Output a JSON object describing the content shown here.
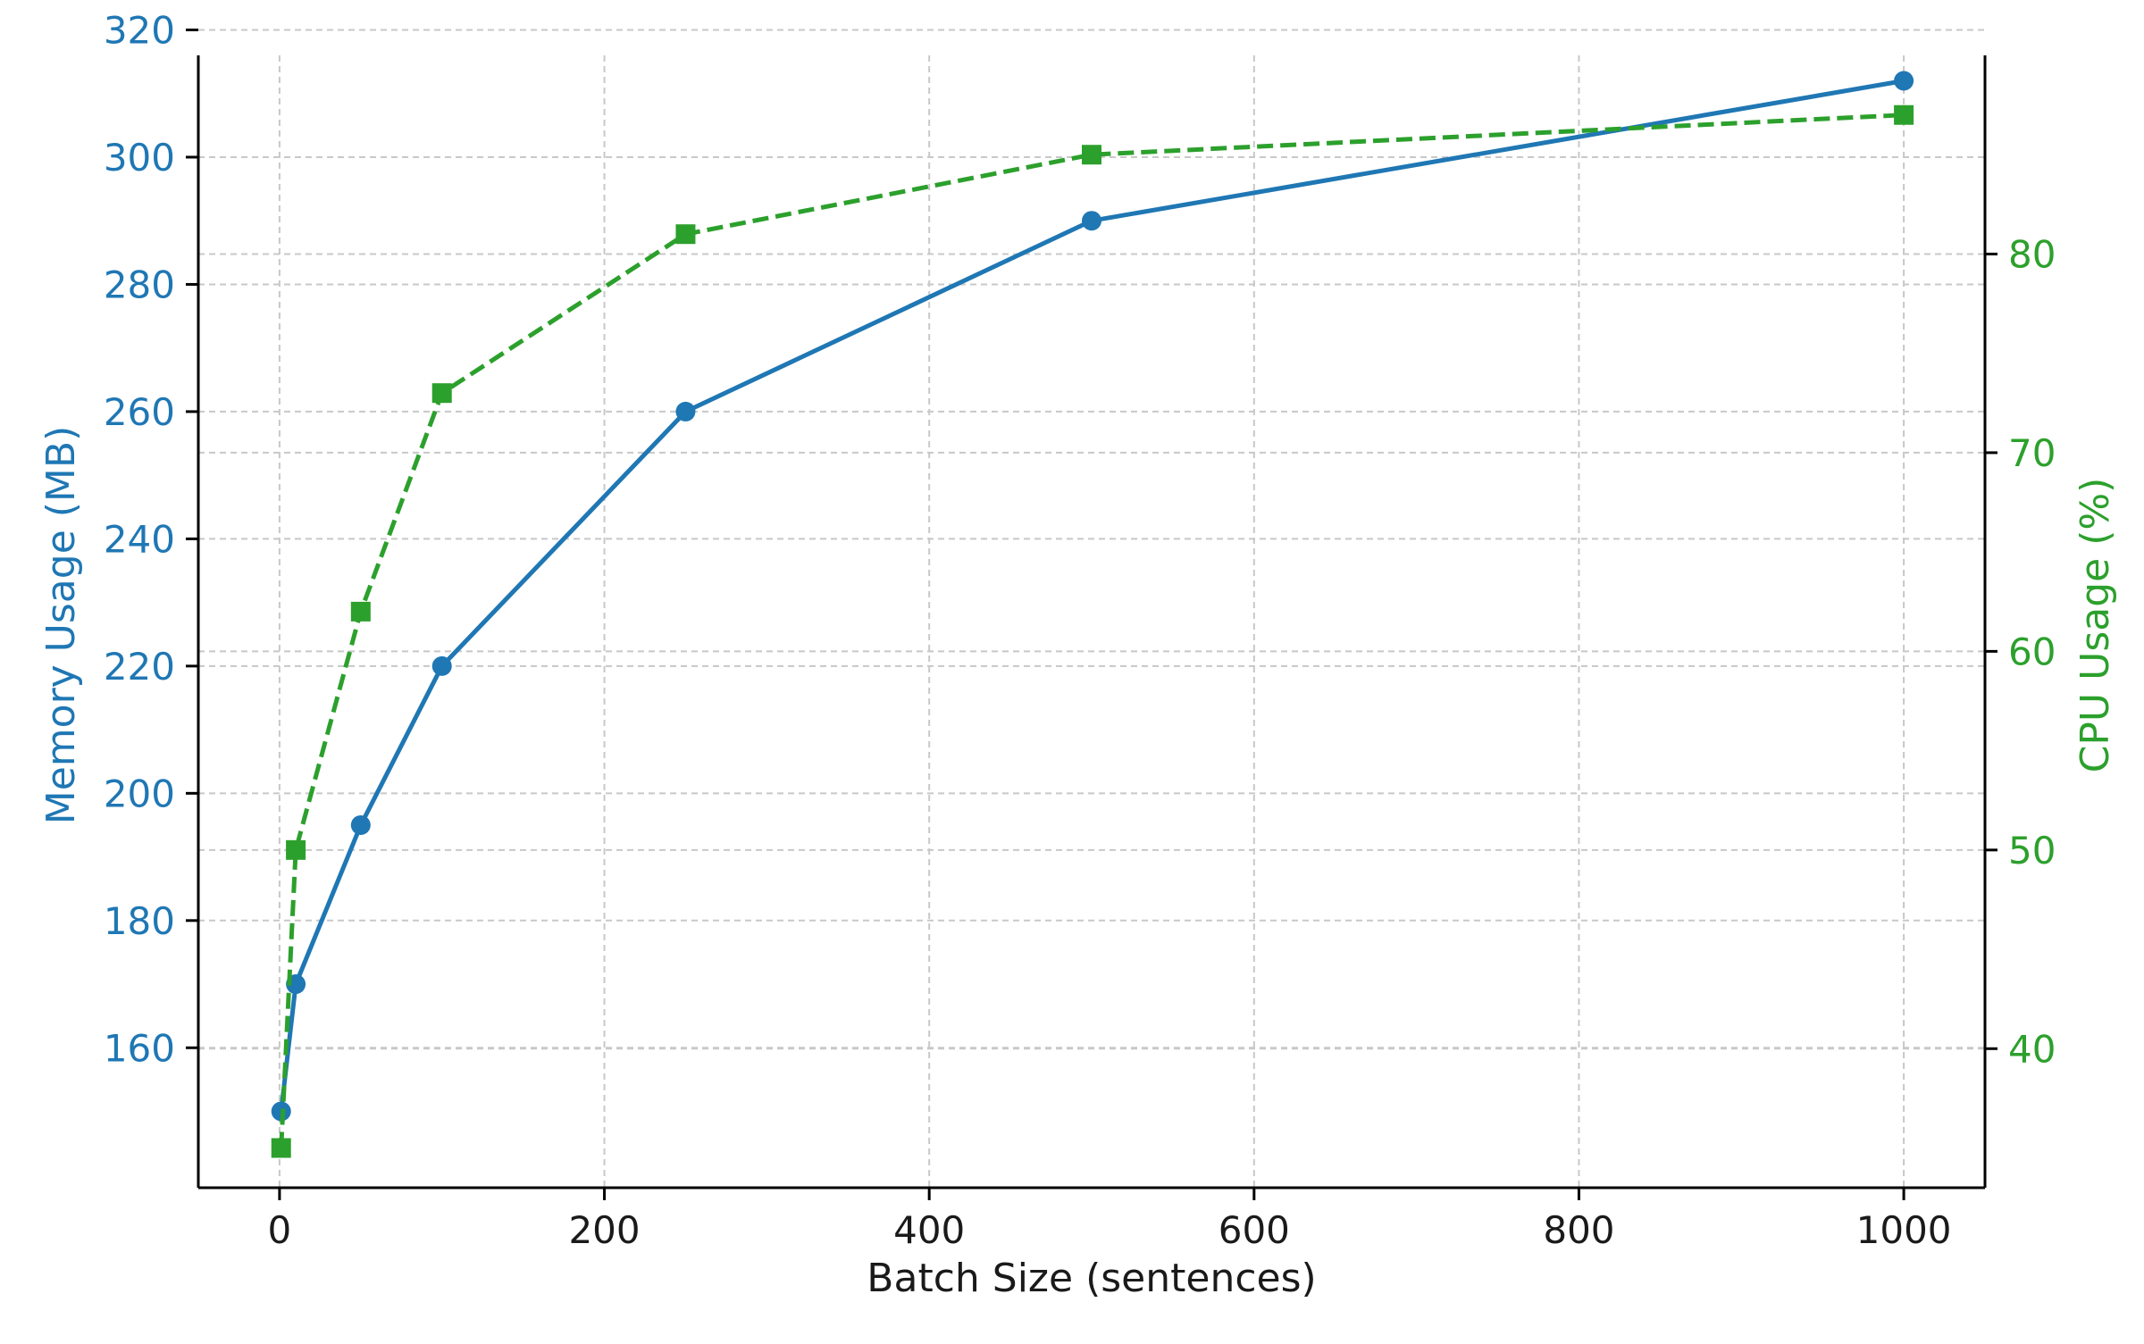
{
  "chart_data": {
    "type": "line",
    "title": "",
    "xlabel": "Batch Size (sentences)",
    "ylabel_left": "Memory Usage (MB)",
    "ylabel_right": "CPU Usage (%)",
    "x": [
      1,
      10,
      50,
      100,
      250,
      500,
      1000
    ],
    "xlim": [
      -50,
      1050
    ],
    "ylim_left": [
      138,
      316
    ],
    "ylim_right": [
      33,
      90
    ],
    "x_ticks": [
      0,
      200,
      400,
      600,
      800,
      1000
    ],
    "y_ticks_left": [
      160,
      180,
      200,
      220,
      240,
      260,
      280,
      300,
      320
    ],
    "y_ticks_right": [
      40,
      50,
      60,
      70,
      80
    ],
    "grid": true,
    "series": [
      {
        "axis": "left",
        "color": "#1f77b4",
        "linestyle": "solid",
        "marker": "circle",
        "values": [
          150,
          170,
          195,
          220,
          260,
          290,
          312
        ]
      },
      {
        "axis": "right",
        "color": "#2ca02c",
        "linestyle": "dashed",
        "marker": "square",
        "values": [
          35,
          50,
          62,
          73,
          81,
          85,
          87
        ]
      }
    ]
  }
}
